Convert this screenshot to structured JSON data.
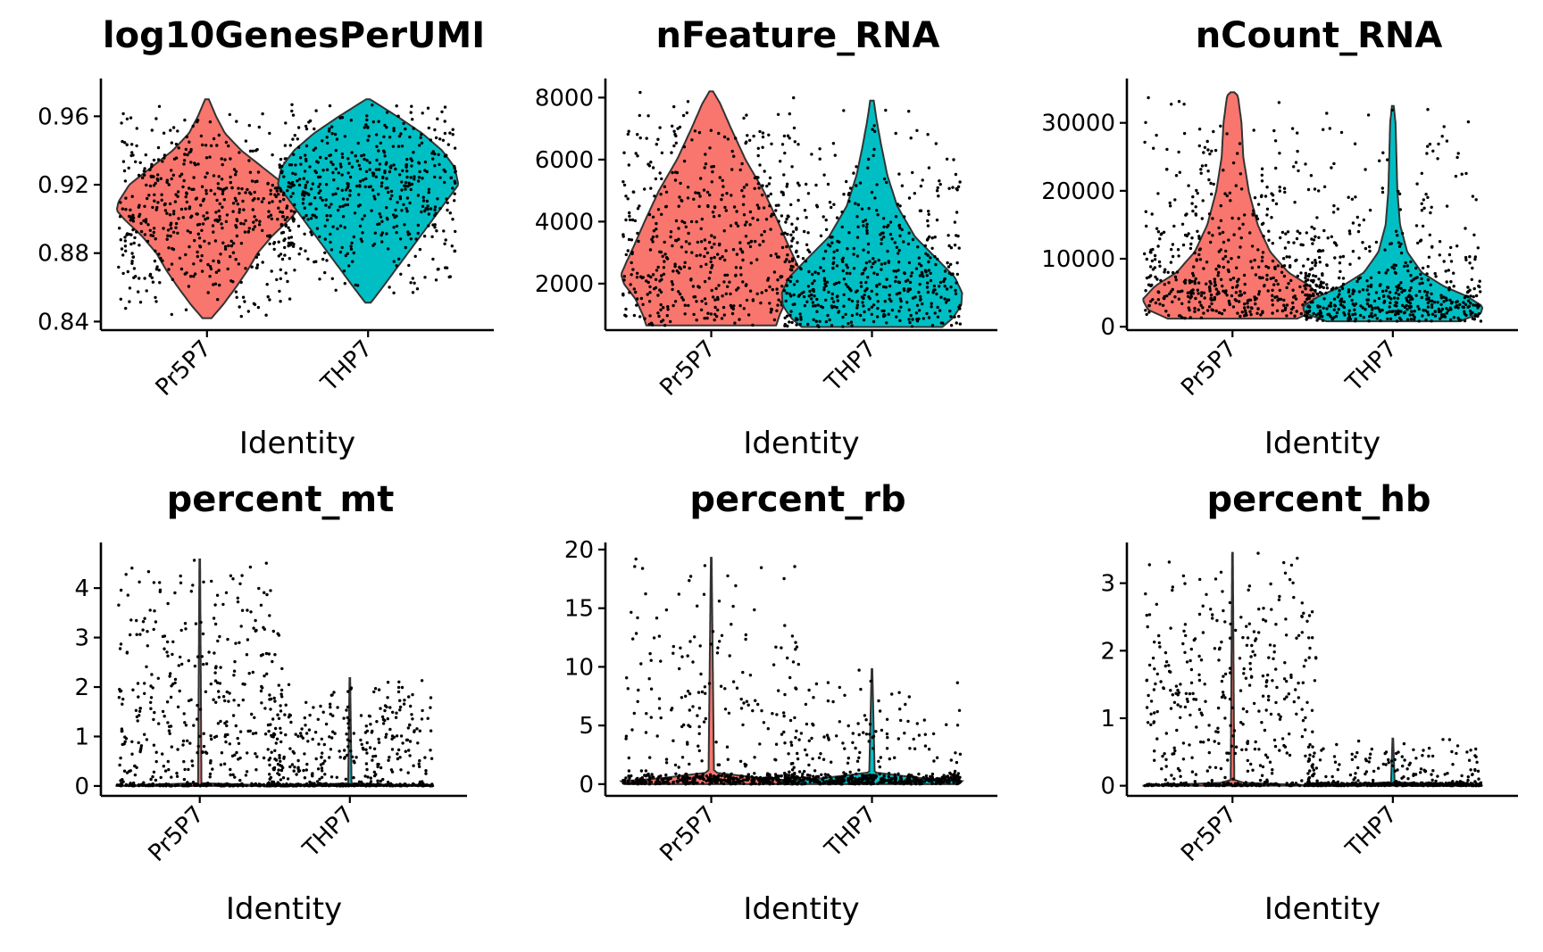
{
  "colors": {
    "Pr5P7": "#F8766D",
    "THP7": "#00BFC4"
  },
  "chart_data": [
    {
      "type": "violin",
      "title": "log10GenesPerUMI",
      "xlabel": "Identity",
      "ylabel": "",
      "categories": [
        "Pr5P7",
        "THP7"
      ],
      "ylim": [
        0.835,
        0.98
      ],
      "yticks": [
        0.84,
        0.88,
        0.92,
        0.96
      ],
      "ytick_labels": [
        "0.84",
        "0.88",
        "0.92",
        "0.96"
      ],
      "jitter_points": true,
      "violins": [
        {
          "category": "Pr5P7",
          "min": 0.842,
          "max": 0.97,
          "profile": [
            [
              0.842,
              0.05
            ],
            [
              0.85,
              0.18
            ],
            [
              0.86,
              0.32
            ],
            [
              0.87,
              0.45
            ],
            [
              0.88,
              0.56
            ],
            [
              0.89,
              0.72
            ],
            [
              0.9,
              0.92
            ],
            [
              0.905,
              1.0
            ],
            [
              0.91,
              0.98
            ],
            [
              0.92,
              0.86
            ],
            [
              0.93,
              0.62
            ],
            [
              0.94,
              0.38
            ],
            [
              0.95,
              0.2
            ],
            [
              0.96,
              0.1
            ],
            [
              0.97,
              0.02
            ]
          ]
        },
        {
          "category": "THP7",
          "min": 0.851,
          "max": 0.97,
          "profile": [
            [
              0.851,
              0.03
            ],
            [
              0.86,
              0.16
            ],
            [
              0.87,
              0.3
            ],
            [
              0.88,
              0.44
            ],
            [
              0.89,
              0.58
            ],
            [
              0.9,
              0.72
            ],
            [
              0.91,
              0.86
            ],
            [
              0.92,
              1.0
            ],
            [
              0.93,
              0.96
            ],
            [
              0.94,
              0.82
            ],
            [
              0.95,
              0.6
            ],
            [
              0.96,
              0.32
            ],
            [
              0.97,
              0.02
            ]
          ]
        }
      ]
    },
    {
      "type": "violin",
      "title": "nFeature_RNA",
      "xlabel": "Identity",
      "ylabel": "",
      "categories": [
        "Pr5P7",
        "THP7"
      ],
      "ylim": [
        500,
        8500
      ],
      "yticks": [
        2000,
        4000,
        6000,
        8000
      ],
      "ytick_labels": [
        "2000",
        "4000",
        "6000",
        "8000"
      ],
      "jitter_points": true,
      "violins": [
        {
          "category": "Pr5P7",
          "min": 650,
          "max": 8200,
          "profile": [
            [
              650,
              0.72
            ],
            [
              1000,
              0.76
            ],
            [
              1500,
              0.84
            ],
            [
              2000,
              0.97
            ],
            [
              2300,
              1.0
            ],
            [
              2700,
              0.94
            ],
            [
              3200,
              0.86
            ],
            [
              4000,
              0.74
            ],
            [
              5000,
              0.58
            ],
            [
              6000,
              0.38
            ],
            [
              7000,
              0.22
            ],
            [
              7800,
              0.1
            ],
            [
              8200,
              0.02
            ]
          ]
        },
        {
          "category": "THP7",
          "min": 600,
          "max": 7900,
          "profile": [
            [
              600,
              0.78
            ],
            [
              900,
              0.9
            ],
            [
              1300,
              0.99
            ],
            [
              1700,
              1.0
            ],
            [
              2200,
              0.92
            ],
            [
              2800,
              0.72
            ],
            [
              3500,
              0.48
            ],
            [
              4500,
              0.28
            ],
            [
              5500,
              0.17
            ],
            [
              6500,
              0.1
            ],
            [
              7300,
              0.05
            ],
            [
              7900,
              0.02
            ]
          ]
        }
      ]
    },
    {
      "type": "violin",
      "title": "nCount_RNA",
      "xlabel": "Identity",
      "ylabel": "",
      "categories": [
        "Pr5P7",
        "THP7"
      ],
      "ylim": [
        -500,
        36000
      ],
      "yticks": [
        0,
        10000,
        20000,
        30000
      ],
      "ytick_labels": [
        "0",
        "10000",
        "20000",
        "30000"
      ],
      "jitter_points": true,
      "violins": [
        {
          "category": "Pr5P7",
          "min": 1200,
          "max": 34500,
          "profile": [
            [
              1200,
              0.72
            ],
            [
              2500,
              0.94
            ],
            [
              4000,
              1.0
            ],
            [
              6000,
              0.86
            ],
            [
              8000,
              0.62
            ],
            [
              11000,
              0.42
            ],
            [
              15000,
              0.28
            ],
            [
              20000,
              0.18
            ],
            [
              25000,
              0.12
            ],
            [
              30000,
              0.1
            ],
            [
              34000,
              0.06
            ],
            [
              34500,
              0.02
            ]
          ]
        },
        {
          "category": "THP7",
          "min": 800,
          "max": 32500,
          "profile": [
            [
              800,
              0.74
            ],
            [
              2000,
              0.98
            ],
            [
              3000,
              1.0
            ],
            [
              4500,
              0.82
            ],
            [
              6000,
              0.56
            ],
            [
              8000,
              0.32
            ],
            [
              11000,
              0.16
            ],
            [
              15000,
              0.08
            ],
            [
              20000,
              0.05
            ],
            [
              25000,
              0.04
            ],
            [
              30000,
              0.03
            ],
            [
              32500,
              0.01
            ]
          ]
        }
      ]
    },
    {
      "type": "violin",
      "title": "percent_mt",
      "xlabel": "Identity",
      "ylabel": "",
      "categories": [
        "Pr5P7",
        "THP7"
      ],
      "ylim": [
        -0.2,
        4.85
      ],
      "yticks": [
        0,
        1,
        2,
        3,
        4
      ],
      "ytick_labels": [
        "0",
        "1",
        "2",
        "3",
        "4"
      ],
      "jitter_points": true,
      "violins": [
        {
          "category": "Pr5P7",
          "min": 0,
          "max": 4.58,
          "profile": [
            [
              0,
              1.0
            ],
            [
              0.02,
              0.5
            ],
            [
              0.05,
              0.02
            ],
            [
              4.58,
              0.004
            ]
          ]
        },
        {
          "category": "THP7",
          "min": 0,
          "max": 2.18,
          "profile": [
            [
              0,
              1.0
            ],
            [
              0.02,
              0.5
            ],
            [
              0.05,
              0.02
            ],
            [
              2.18,
              0.004
            ]
          ]
        }
      ]
    },
    {
      "type": "violin",
      "title": "percent_rb",
      "xlabel": "Identity",
      "ylabel": "",
      "categories": [
        "Pr5P7",
        "THP7"
      ],
      "ylim": [
        -1,
        20.3
      ],
      "yticks": [
        0,
        5,
        10,
        15,
        20
      ],
      "ytick_labels": [
        "0",
        "5",
        "10",
        "15",
        "20"
      ],
      "jitter_points": true,
      "violins": [
        {
          "category": "Pr5P7",
          "min": 0,
          "max": 19.3,
          "profile": [
            [
              0,
              0.96
            ],
            [
              0.25,
              1.0
            ],
            [
              0.5,
              0.55
            ],
            [
              1.0,
              0.03
            ],
            [
              19.3,
              0.004
            ]
          ]
        },
        {
          "category": "THP7",
          "min": 0,
          "max": 9.8,
          "profile": [
            [
              0,
              0.96
            ],
            [
              0.25,
              1.0
            ],
            [
              0.5,
              0.55
            ],
            [
              1.0,
              0.03
            ],
            [
              9.8,
              0.004
            ]
          ]
        }
      ]
    },
    {
      "type": "violin",
      "title": "percent_hb",
      "xlabel": "Identity",
      "ylabel": "",
      "categories": [
        "Pr5P7",
        "THP7"
      ],
      "ylim": [
        -0.15,
        3.55
      ],
      "yticks": [
        0,
        1,
        2,
        3
      ],
      "ytick_labels": [
        "0",
        "1",
        "2",
        "3"
      ],
      "jitter_points": true,
      "violins": [
        {
          "category": "Pr5P7",
          "min": 0,
          "max": 3.45,
          "profile": [
            [
              0,
              1.0
            ],
            [
              0.02,
              0.5
            ],
            [
              0.05,
              0.02
            ],
            [
              3.45,
              0.004
            ]
          ]
        },
        {
          "category": "THP7",
          "min": 0,
          "max": 0.7,
          "profile": [
            [
              0,
              1.0
            ],
            [
              0.02,
              0.5
            ],
            [
              0.05,
              0.02
            ],
            [
              0.7,
              0.004
            ]
          ]
        }
      ]
    }
  ]
}
